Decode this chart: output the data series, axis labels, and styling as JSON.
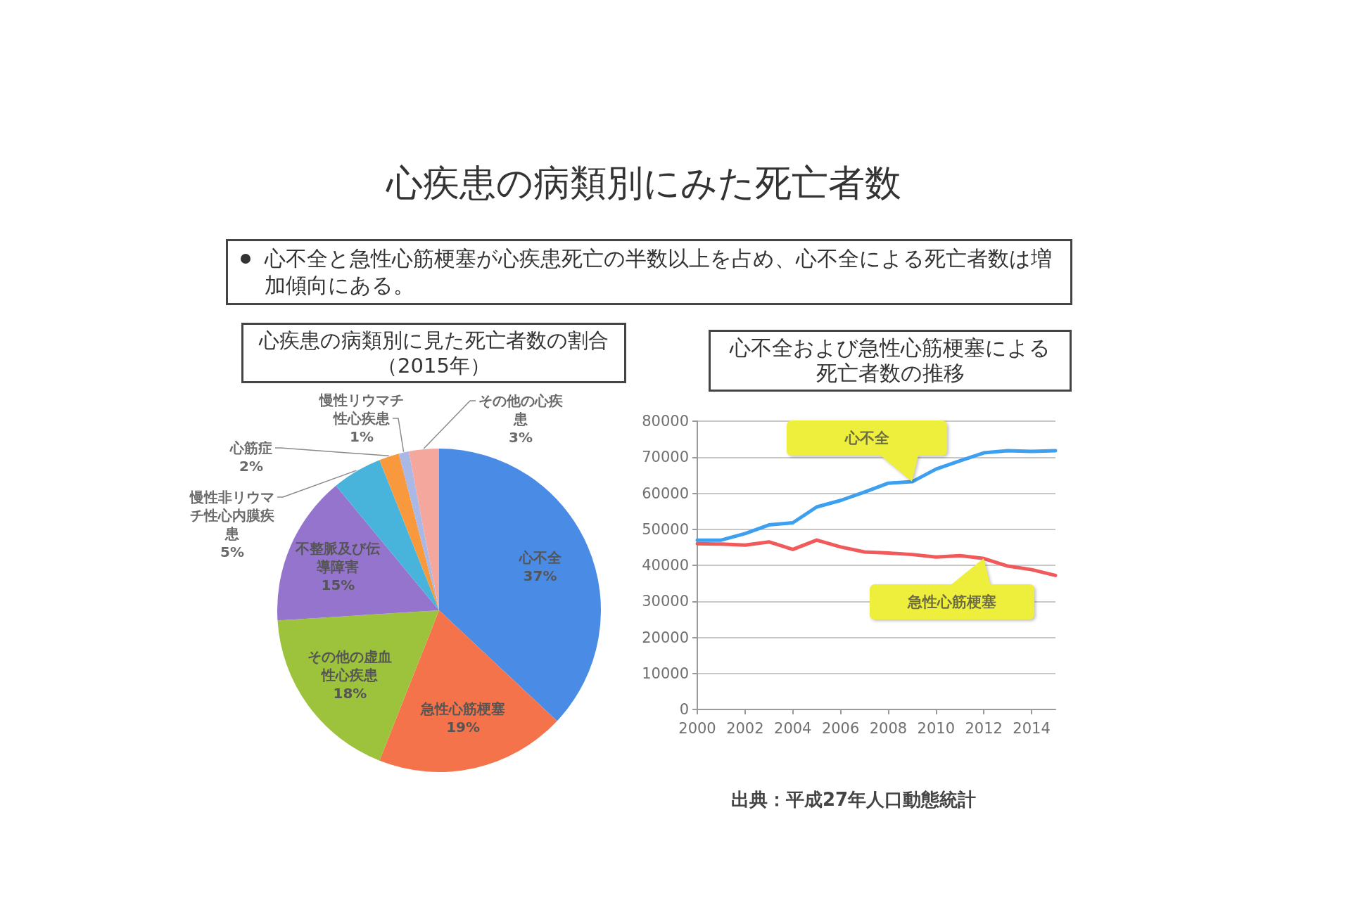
{
  "chart_data": [
    {
      "type": "other",
      "title": "心疾患の病類別にみた死亡者数",
      "annotations": [
        "心不全と急性心筋梗塞が心疾患死亡の半数以上を占め、心不全による死亡者数は増加傾向にある。"
      ]
    },
    {
      "type": "pie",
      "title": "心疾患の病類別に見た死亡者数の割合",
      "subtitle": "（2015年）",
      "categories": [
        "心不全",
        "急性心筋梗塞",
        "その他の虚血性心疾患",
        "不整脈及び伝導障害",
        "慢性非リウマチ性心内膜疾患",
        "心筋症",
        "慢性リウマチ性心疾患",
        "その他の心疾患"
      ],
      "values": [
        37,
        19,
        18,
        15,
        5,
        2,
        1,
        3
      ],
      "colors": [
        "#4a8be6",
        "#f5734a",
        "#9dc23c",
        "#9474cc",
        "#48b4dc",
        "#f7993c",
        "#aab8e6",
        "#f4a79d"
      ],
      "value_labels": [
        "37%",
        "19%",
        "18%",
        "15%",
        "5%",
        "2%",
        "1%",
        "3%"
      ]
    },
    {
      "type": "line",
      "title": "心不全および急性心筋梗塞による死亡者数の推移",
      "x": [
        2000,
        2001,
        2002,
        2003,
        2004,
        2005,
        2006,
        2007,
        2008,
        2009,
        2010,
        2011,
        2012,
        2013,
        2014,
        2015
      ],
      "xlim": [
        2000,
        2015
      ],
      "xticks": [
        2000,
        2002,
        2004,
        2006,
        2008,
        2010,
        2012,
        2014
      ],
      "ylim": [
        0,
        80000
      ],
      "yticks": [
        0,
        10000,
        20000,
        30000,
        40000,
        50000,
        60000,
        70000,
        80000
      ],
      "grid": "y",
      "marker": "none",
      "series": [
        {
          "name": "心不全",
          "color": "#3d9ff0",
          "values": [
            47000,
            47000,
            48800,
            51200,
            51800,
            56200,
            58000,
            60300,
            62800,
            63200,
            66700,
            69000,
            71200,
            71800,
            71600,
            71800
          ]
        },
        {
          "name": "急性心筋梗塞",
          "color": "#f05a5a",
          "values": [
            46000,
            45900,
            45600,
            46500,
            44400,
            47000,
            45100,
            43700,
            43400,
            43000,
            42300,
            42700,
            41900,
            39800,
            38800,
            37200
          ]
        }
      ],
      "annotations": [
        "出典：平成27年人口動態統計"
      ]
    }
  ]
}
